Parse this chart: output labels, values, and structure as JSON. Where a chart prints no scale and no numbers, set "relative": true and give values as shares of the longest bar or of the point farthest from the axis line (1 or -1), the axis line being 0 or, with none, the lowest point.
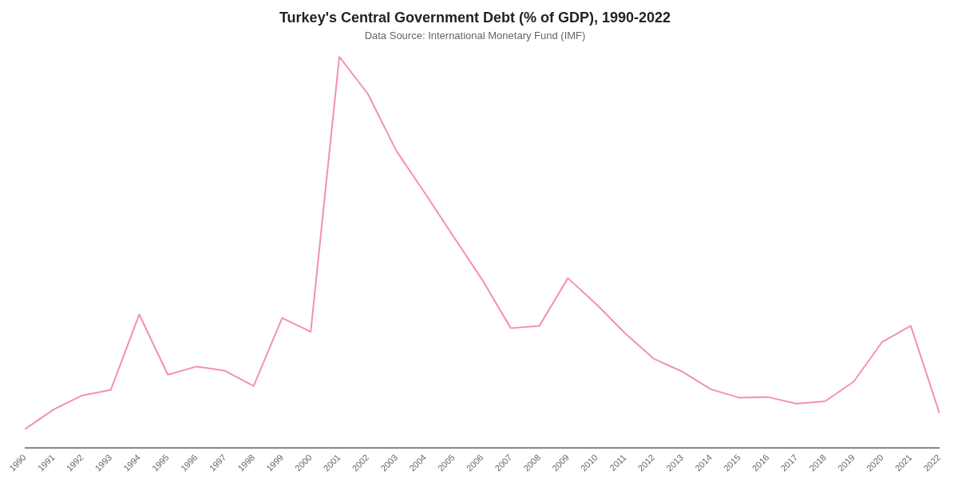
{
  "chart_data": {
    "type": "line",
    "title": "Turkey's Central Government Debt (% of GDP), 1990-2022",
    "subtitle": "Data Source: International Monetary Fund (IMF)",
    "relative": true,
    "categories": [
      "1990",
      "1991",
      "1992",
      "1993",
      "1994",
      "1995",
      "1996",
      "1997",
      "1998",
      "1999",
      "2000",
      "2001",
      "2002",
      "2003",
      "2004",
      "2005",
      "2006",
      "2007",
      "2008",
      "2009",
      "2010",
      "2011",
      "2012",
      "2013",
      "2014",
      "2015",
      "2016",
      "2017",
      "2018",
      "2019",
      "2020",
      "2021",
      "2022"
    ],
    "series": [
      {
        "color": "#f48fb5",
        "values": [
          0.048,
          0.098,
          0.134,
          0.148,
          0.341,
          0.187,
          0.208,
          0.197,
          0.158,
          0.332,
          0.297,
          1,
          0.905,
          0.759,
          0.651,
          0.54,
          0.43,
          0.306,
          0.312,
          0.434,
          0.367,
          0.293,
          0.228,
          0.195,
          0.15,
          0.128,
          0.13,
          0.113,
          0.119,
          0.169,
          0.271,
          0.312,
          0.089
        ]
      }
    ],
    "grid": false,
    "legend": false,
    "marker": "none",
    "line_style": "solid"
  }
}
